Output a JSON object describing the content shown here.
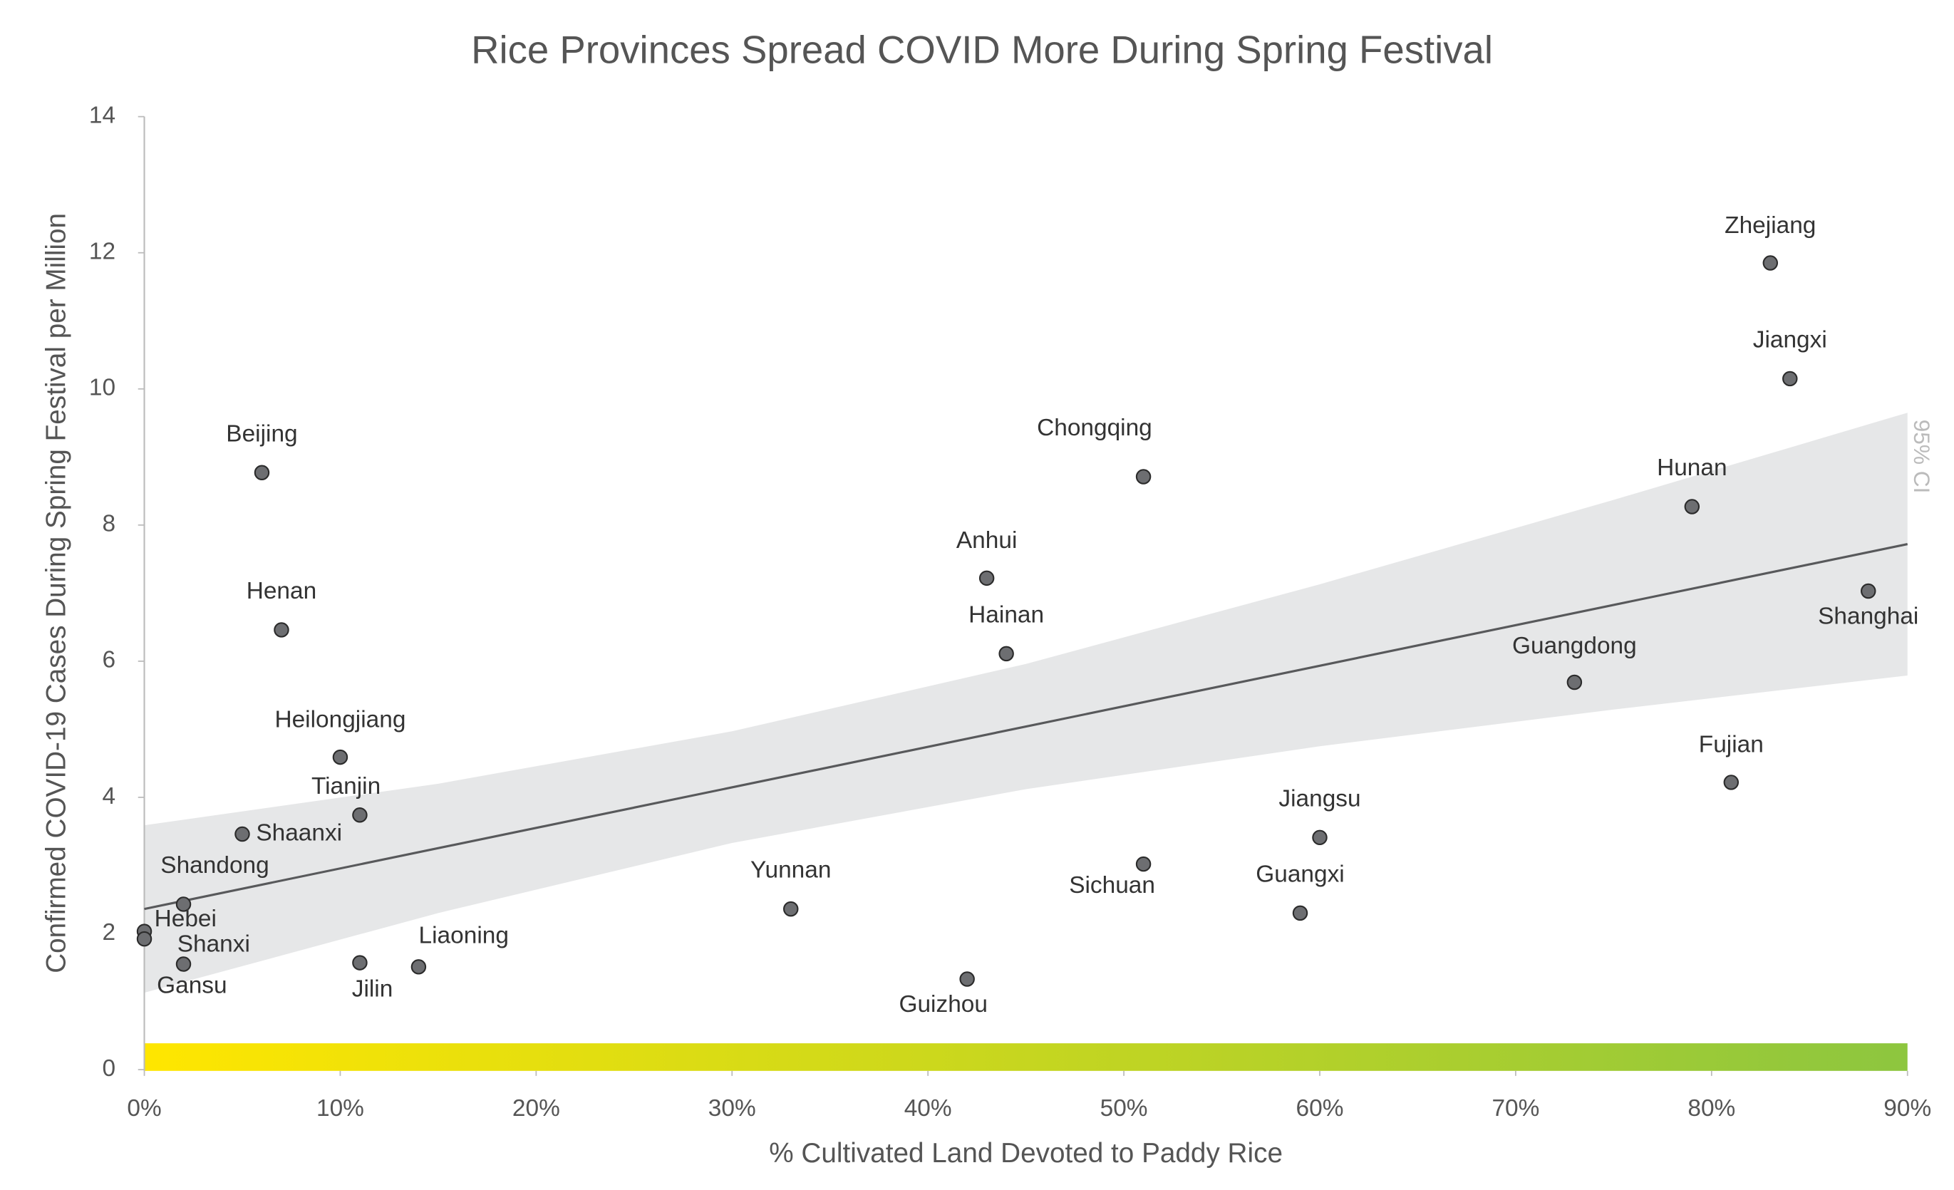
{
  "chart_data": {
    "type": "scatter",
    "title": "Rice Provinces Spread COVID More During Spring Festival",
    "x_label": "% Cultivated Land Devoted to Paddy Rice",
    "y_label": "Confirmed COVID-19 Cases During Spring Festival per Million",
    "labels": [
      "Zhejiang",
      "Jiangxi",
      "Hunan",
      "Shanghai",
      "Guangdong",
      "Fujian",
      "Jiangsu",
      "Guangxi",
      "Sichuan",
      "Chongqing",
      "Anhui",
      "Hainan",
      "Guizhou",
      "Yunnan",
      "Liaoning",
      "Jilin",
      "Tianjin",
      "Heilongjiang",
      "Shaanxi",
      "Shandong",
      "Shanxi",
      "Hebei",
      "Gansu",
      "Beijing",
      "Henan"
    ],
    "x": [
      83,
      84,
      79,
      88,
      73,
      81,
      60,
      59,
      51,
      51,
      43,
      44,
      42,
      33,
      14,
      11,
      11,
      10,
      5,
      2,
      2,
      0,
      0,
      6,
      7
    ],
    "values": [
      11.85,
      10.15,
      8.27,
      7.03,
      5.69,
      4.22,
      3.41,
      2.3,
      3.02,
      8.71,
      7.22,
      6.11,
      1.33,
      2.36,
      1.51,
      1.57,
      3.74,
      4.59,
      3.46,
      2.43,
      1.55,
      2.03,
      1.92,
      8.77,
      6.46
    ],
    "color": "#6d6e71",
    "trend": {
      "x": [
        0,
        90
      ],
      "values": [
        2.36,
        7.72
      ],
      "color": "#58595b"
    },
    "confidence_band": {
      "label": "95% CI",
      "x": [
        0,
        15,
        30,
        45,
        60,
        75,
        90
      ],
      "upper": [
        3.59,
        4.2,
        4.97,
        5.96,
        7.13,
        8.37,
        9.65
      ],
      "lower": [
        1.13,
        2.3,
        3.33,
        4.12,
        4.75,
        5.29,
        5.79
      ],
      "color": "#e6e7e8"
    },
    "xlim": [
      0,
      90
    ],
    "ylim": [
      0,
      14
    ],
    "xticks": [
      {
        "value": 0,
        "label": "0%"
      },
      {
        "value": 10,
        "label": "10%"
      },
      {
        "value": 20,
        "label": "20%"
      },
      {
        "value": 30,
        "label": "30%"
      },
      {
        "value": 40,
        "label": "40%"
      },
      {
        "value": 50,
        "label": "50%"
      },
      {
        "value": 60,
        "label": "60%"
      },
      {
        "value": 70,
        "label": "70%"
      },
      {
        "value": 80,
        "label": "80%"
      },
      {
        "value": 90,
        "label": "90%"
      }
    ],
    "yticks": [
      0,
      2,
      4,
      6,
      8,
      10,
      12,
      14
    ]
  }
}
